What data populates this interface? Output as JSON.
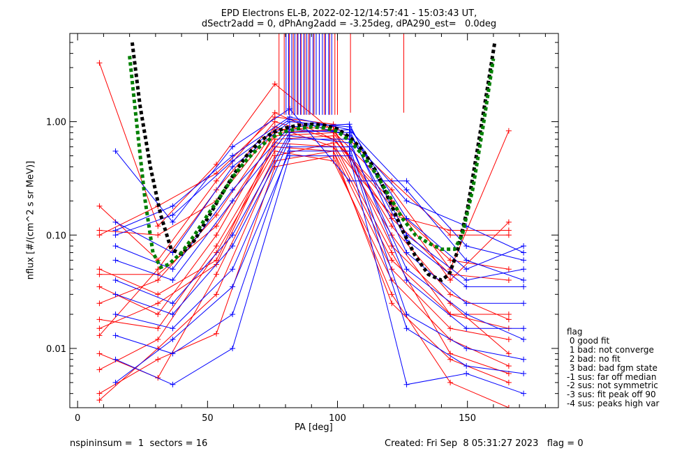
{
  "header": {
    "title_line1": "EPD Electrons EL-B, 2022-02-12/14:57:41 - 15:03:43 UT,",
    "title_line2": "dSectr2add = 0, dPhAng2add = -3.25deg, dPA290_est=   0.0deg"
  },
  "footer": {
    "left": "nspininsum =  1  sectors = 16",
    "right": "Created: Fri Sep  8 05:31:27 2023   flag = 0"
  },
  "flag_legend": {
    "title": "flag",
    "items": [
      " 0 good fit",
      " 1 bad: not converge",
      " 2 bad: no fit",
      " 3 bad: bad fgm state",
      "-1 sus: far off median",
      "-2 sus: not symmetric",
      "-3 sus: fit peak off 90",
      "-4 sus: peaks high var"
    ]
  },
  "colors": {
    "red": "#ff0000",
    "blue": "#0000ff",
    "fit_black": "#000000",
    "fit_green": "#00ff00"
  },
  "chart_data": {
    "type": "line",
    "xlabel": "PA [deg]",
    "ylabel": "nflux [#/(cm^2 s sr MeV)]",
    "xlim": [
      -3,
      185
    ],
    "ylim": [
      0.003,
      6.0
    ],
    "yscale": "log",
    "xticks": [
      0,
      50,
      100,
      150
    ],
    "xtick_labels": [
      "0",
      "50",
      "100",
      "150"
    ],
    "yticks": [
      0.01,
      0.1,
      1.0
    ],
    "ytick_labels": [
      "0.01",
      "0.10",
      "1.00"
    ],
    "marker": "+",
    "pa_bins": [
      8.4,
      14.6,
      30.9,
      36.6,
      53.4,
      59.6,
      75.9,
      81.6,
      98.4,
      104.6,
      120.9,
      126.6,
      143.4,
      149.6,
      165.9,
      171.6
    ],
    "series": [
      {
        "color": "red",
        "x": [
          8.4,
          30.9,
          53.4,
          75.9,
          98.4,
          120.9,
          143.4,
          165.9
        ],
        "y": [
          3.3,
          0.12,
          0.42,
          2.15,
          0.82,
          0.25,
          0.05,
          0.83
        ]
      },
      {
        "color": "red",
        "x": [
          8.4,
          30.9,
          53.4,
          75.9,
          98.4,
          120.9,
          143.4,
          165.9
        ],
        "y": [
          0.18,
          0.06,
          0.3,
          1.2,
          0.7,
          0.2,
          0.04,
          0.13
        ]
      },
      {
        "color": "red",
        "x": [
          8.4,
          30.9,
          53.4,
          75.9,
          98.4,
          120.9,
          143.4,
          165.9
        ],
        "y": [
          0.11,
          0.1,
          0.2,
          0.9,
          0.6,
          0.15,
          0.11,
          0.11
        ]
      },
      {
        "color": "red",
        "x": [
          8.4,
          30.9,
          53.4,
          75.9,
          98.4,
          120.9,
          143.4,
          165.9
        ],
        "y": [
          0.05,
          0.03,
          0.06,
          0.7,
          0.75,
          0.1,
          0.02,
          0.02
        ]
      },
      {
        "color": "red",
        "x": [
          8.4,
          30.9,
          53.4,
          75.9,
          98.4,
          120.9,
          143.4,
          165.9
        ],
        "y": [
          0.018,
          0.015,
          0.08,
          0.6,
          0.55,
          0.05,
          0.015,
          0.012
        ]
      },
      {
        "color": "red",
        "x": [
          8.4,
          30.9,
          53.4,
          75.9,
          98.4,
          120.9,
          143.4,
          165.9
        ],
        "y": [
          0.009,
          0.0055,
          0.045,
          0.5,
          0.65,
          0.07,
          0.009,
          0.006
        ]
      },
      {
        "color": "red",
        "x": [
          8.4,
          30.9,
          53.4,
          75.9,
          98.4,
          120.9,
          143.4,
          165.9
        ],
        "y": [
          0.004,
          0.008,
          0.0135,
          0.4,
          0.5,
          0.03,
          0.005,
          0.003
        ]
      },
      {
        "color": "red",
        "x": [
          8.4,
          30.9,
          53.4,
          75.9,
          98.4,
          120.9,
          143.4,
          165.9
        ],
        "y": [
          0.035,
          0.02,
          0.1,
          0.8,
          0.85,
          0.12,
          0.03,
          0.018
        ]
      },
      {
        "color": "red",
        "x": [
          8.4,
          30.9,
          53.4,
          75.9,
          98.4,
          120.9,
          143.4,
          165.9
        ],
        "y": [
          0.025,
          0.04,
          0.15,
          0.85,
          0.9,
          0.08,
          0.025,
          0.009
        ]
      },
      {
        "color": "red",
        "x": [
          8.4,
          30.9,
          53.4,
          75.9,
          98.4,
          120.9,
          143.4,
          165.9
        ],
        "y": [
          0.013,
          0.05,
          0.25,
          1.0,
          0.7,
          0.18,
          0.06,
          0.05
        ]
      },
      {
        "color": "red",
        "x": [
          8.4,
          30.9,
          53.4,
          75.9,
          98.4,
          120.9,
          143.4,
          165.9
        ],
        "y": [
          0.0065,
          0.012,
          0.07,
          0.55,
          0.45,
          0.04,
          0.012,
          0.007
        ]
      },
      {
        "color": "red",
        "x": [
          8.4,
          30.9,
          53.4,
          75.9,
          98.4,
          120.9,
          143.4,
          165.9
        ],
        "y": [
          0.1,
          0.18,
          0.35,
          1.1,
          0.95,
          0.3,
          0.1,
          0.1
        ]
      },
      {
        "color": "red",
        "x": [
          8.4,
          30.9,
          53.4,
          75.9,
          98.4,
          120.9,
          143.4,
          165.9
        ],
        "y": [
          0.045,
          0.045,
          0.12,
          0.75,
          0.8,
          0.14,
          0.045,
          0.04
        ]
      },
      {
        "color": "red",
        "x": [
          8.4,
          30.9,
          53.4,
          75.9,
          98.4,
          120.9,
          143.4,
          165.9
        ],
        "y": [
          0.015,
          0.025,
          0.055,
          0.65,
          0.6,
          0.06,
          0.02,
          0.015
        ]
      },
      {
        "color": "red",
        "x": [
          8.4,
          30.9,
          53.4,
          75.9,
          98.4,
          120.9,
          143.4,
          165.9
        ],
        "y": [
          0.0035,
          0.01,
          0.03,
          0.45,
          0.55,
          0.025,
          0.008,
          0.005
        ]
      },
      {
        "color": "blue",
        "x": [
          14.6,
          36.6,
          59.6,
          81.6,
          104.6,
          126.6,
          149.6,
          171.6
        ],
        "y": [
          0.55,
          0.13,
          0.6,
          1.3,
          0.3,
          0.3,
          0.08,
          0.06
        ]
      },
      {
        "color": "blue",
        "x": [
          14.6,
          36.6,
          59.6,
          81.6,
          104.6,
          126.6,
          149.6,
          171.6
        ],
        "y": [
          0.13,
          0.07,
          0.4,
          1.0,
          0.9,
          0.14,
          0.05,
          0.08
        ]
      },
      {
        "color": "blue",
        "x": [
          14.6,
          36.6,
          59.6,
          81.6,
          104.6,
          126.6,
          149.6,
          171.6
        ],
        "y": [
          0.08,
          0.05,
          0.25,
          0.9,
          0.95,
          0.1,
          0.04,
          0.05
        ]
      },
      {
        "color": "blue",
        "x": [
          14.6,
          36.6,
          59.6,
          81.6,
          104.6,
          126.6,
          149.6,
          171.6
        ],
        "y": [
          0.04,
          0.025,
          0.1,
          0.8,
          0.85,
          0.07,
          0.025,
          0.025
        ]
      },
      {
        "color": "blue",
        "x": [
          14.6,
          36.6,
          59.6,
          81.6,
          104.6,
          126.6,
          149.6,
          171.6
        ],
        "y": [
          0.02,
          0.015,
          0.05,
          0.7,
          0.7,
          0.04,
          0.015,
          0.015
        ]
      },
      {
        "color": "blue",
        "x": [
          14.6,
          36.6,
          59.6,
          81.6,
          104.6,
          126.6,
          149.6,
          171.6
        ],
        "y": [
          0.013,
          0.009,
          0.02,
          0.6,
          0.6,
          0.02,
          0.01,
          0.008
        ]
      },
      {
        "color": "blue",
        "x": [
          14.6,
          36.6,
          59.6,
          81.6,
          104.6,
          126.6,
          149.6,
          171.6
        ],
        "y": [
          0.008,
          0.0048,
          0.01,
          0.5,
          0.5,
          0.0048,
          0.006,
          0.004
        ]
      },
      {
        "color": "blue",
        "x": [
          14.6,
          36.6,
          59.6,
          81.6,
          104.6,
          126.6,
          149.6,
          171.6
        ],
        "y": [
          0.1,
          0.15,
          0.45,
          1.05,
          0.75,
          0.2,
          0.12,
          0.07
        ]
      },
      {
        "color": "blue",
        "x": [
          14.6,
          36.6,
          59.6,
          81.6,
          104.6,
          126.6,
          149.6,
          171.6
        ],
        "y": [
          0.06,
          0.04,
          0.2,
          0.85,
          0.8,
          0.09,
          0.035,
          0.035
        ]
      },
      {
        "color": "blue",
        "x": [
          14.6,
          36.6,
          59.6,
          81.6,
          104.6,
          126.6,
          149.6,
          171.6
        ],
        "y": [
          0.03,
          0.02,
          0.08,
          0.75,
          0.65,
          0.05,
          0.02,
          0.012
        ]
      },
      {
        "color": "blue",
        "x": [
          14.6,
          36.6,
          59.6,
          81.6,
          104.6,
          126.6,
          149.6,
          171.6
        ],
        "y": [
          0.005,
          0.012,
          0.035,
          0.55,
          0.55,
          0.015,
          0.007,
          0.006
        ]
      },
      {
        "color": "blue",
        "x": [
          14.6,
          36.6,
          59.6,
          81.6,
          104.6,
          126.6,
          149.6,
          171.6
        ],
        "y": [
          0.11,
          0.18,
          0.5,
          1.1,
          0.85,
          0.25,
          0.06,
          0.04
        ]
      }
    ],
    "fit_curves": [
      {
        "color": "black",
        "style": "dashed",
        "x": [
          21,
          24,
          28,
          32,
          36,
          40,
          45,
          50,
          55,
          60,
          65,
          70,
          75,
          80,
          85,
          90,
          95,
          100,
          105,
          110,
          115,
          120,
          125,
          130,
          135,
          140,
          143,
          146,
          150,
          154,
          158,
          160.5
        ],
        "y": [
          5.0,
          1.4,
          0.4,
          0.15,
          0.075,
          0.068,
          0.09,
          0.14,
          0.22,
          0.34,
          0.5,
          0.67,
          0.8,
          0.88,
          0.93,
          0.95,
          0.93,
          0.86,
          0.72,
          0.55,
          0.36,
          0.2,
          0.11,
          0.065,
          0.045,
          0.04,
          0.045,
          0.07,
          0.17,
          0.6,
          2.2,
          5.0
        ]
      },
      {
        "color": "green",
        "style": "dashed",
        "x": [
          20,
          23,
          26,
          29,
          32,
          35,
          40,
          45,
          50,
          55,
          60,
          65,
          70,
          75,
          80,
          85,
          90,
          95,
          100,
          105,
          110,
          115,
          120,
          125,
          130,
          135,
          140,
          145,
          148,
          152,
          156,
          160
        ],
        "y": [
          3.8,
          0.85,
          0.2,
          0.07,
          0.052,
          0.055,
          0.07,
          0.1,
          0.15,
          0.22,
          0.33,
          0.46,
          0.6,
          0.73,
          0.82,
          0.87,
          0.9,
          0.88,
          0.82,
          0.67,
          0.5,
          0.34,
          0.22,
          0.14,
          0.1,
          0.085,
          0.075,
          0.075,
          0.1,
          0.25,
          0.9,
          3.6
        ]
      }
    ],
    "vertical_lines": [
      {
        "color": "red",
        "x": [
          77.5,
          79.5,
          81.5,
          83,
          84.5,
          86,
          87.5,
          89,
          91,
          93,
          95,
          97,
          99,
          100,
          105,
          125.5
        ]
      },
      {
        "color": "blue",
        "x": [
          80.2,
          81.2,
          82.4,
          83.6,
          84.8,
          85.8,
          87,
          88.2,
          89.4,
          90.6,
          91.8,
          93,
          94.2,
          95.4,
          96.6,
          97.8
        ]
      }
    ]
  }
}
